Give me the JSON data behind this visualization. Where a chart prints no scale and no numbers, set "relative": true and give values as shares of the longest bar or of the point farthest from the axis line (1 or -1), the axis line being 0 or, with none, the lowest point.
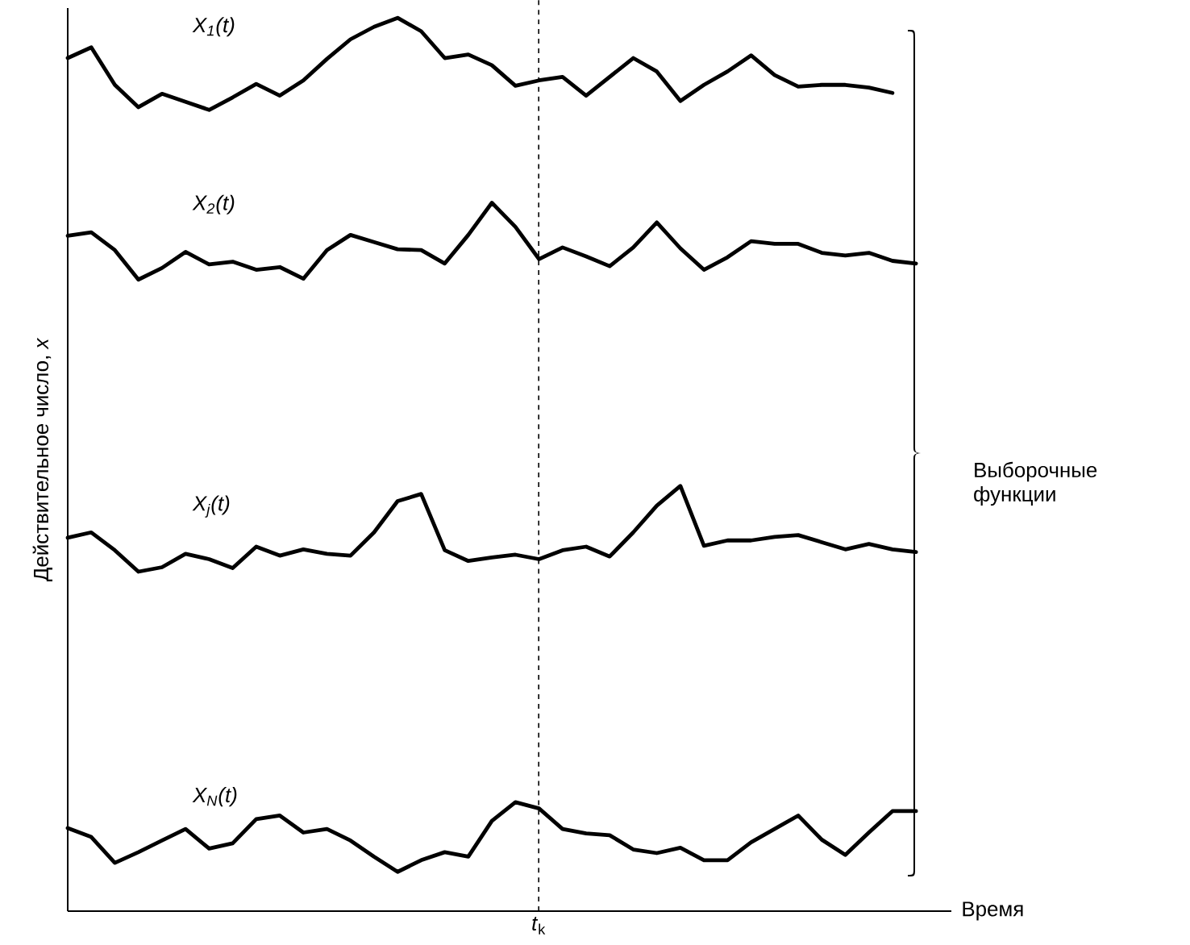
{
  "chart_data": {
    "type": "line",
    "relative": true,
    "ylabel": "Действительное число, *x*",
    "xlabel": "Время",
    "line_style": "solid",
    "annotations": [
      "Выборочные функции",
      "*t*$_{k}$"
    ],
    "categories": [
      null,
      null,
      null,
      null,
      null,
      null,
      null,
      null,
      null,
      null,
      null,
      null,
      null,
      null,
      null,
      null,
      null,
      null,
      null,
      null,
      null,
      null,
      null,
      null,
      null,
      null,
      null,
      null,
      null,
      null,
      null,
      null,
      null,
      null,
      null,
      null,
      null
    ],
    "series": [
      {
        "name": "*X*$_{1}$(*t*)",
        "color": "#000000",
        "values": [
          0.955,
          0.967,
          0.925,
          0.9,
          0.915,
          0.906,
          0.897,
          0.911,
          0.926,
          0.913,
          0.93,
          0.954,
          0.976,
          0.99,
          1.0,
          0.985,
          0.955,
          0.959,
          0.947,
          0.924,
          0.93,
          0.934,
          0.913,
          0.934,
          0.955,
          0.94,
          0.907,
          0.925,
          0.94,
          0.958,
          0.936,
          0.923,
          0.925,
          0.925,
          0.922,
          0.916,
          null
        ]
      },
      {
        "name": "*X*$_{2}$(*t*)",
        "color": "#000000",
        "values": [
          0.756,
          0.76,
          0.74,
          0.707,
          0.72,
          0.738,
          0.724,
          0.727,
          0.718,
          0.721,
          0.708,
          0.74,
          0.757,
          0.749,
          0.741,
          0.74,
          0.725,
          0.757,
          0.793,
          0.766,
          0.73,
          0.743,
          0.733,
          0.722,
          0.743,
          0.771,
          0.742,
          0.718,
          0.732,
          0.75,
          0.747,
          0.747,
          0.737,
          0.734,
          0.737,
          0.728,
          0.725
        ]
      },
      {
        "name": "*X*$_{j}$(*t*)",
        "color": "#000000",
        "values": [
          0.418,
          0.424,
          0.404,
          0.38,
          0.385,
          0.4,
          0.394,
          0.384,
          0.408,
          0.398,
          0.405,
          0.4,
          0.398,
          0.424,
          0.459,
          0.467,
          0.404,
          0.392,
          0.396,
          0.399,
          0.394,
          0.404,
          0.408,
          0.397,
          0.424,
          0.454,
          0.476,
          0.409,
          0.415,
          0.415,
          0.419,
          0.421,
          0.413,
          0.405,
          0.411,
          0.405,
          0.402
        ]
      },
      {
        "name": "*X*$_{N}$(*t*)",
        "color": "#000000",
        "values": [
          0.093,
          0.083,
          0.054,
          0.066,
          0.079,
          0.092,
          0.07,
          0.076,
          0.103,
          0.107,
          0.088,
          0.092,
          0.079,
          0.061,
          0.044,
          0.057,
          0.066,
          0.061,
          0.101,
          0.122,
          0.115,
          0.092,
          0.087,
          0.085,
          0.069,
          0.065,
          0.071,
          0.057,
          0.057,
          0.077,
          0.092,
          0.107,
          0.08,
          0.063,
          0.088,
          0.112,
          0.112
        ]
      }
    ]
  }
}
